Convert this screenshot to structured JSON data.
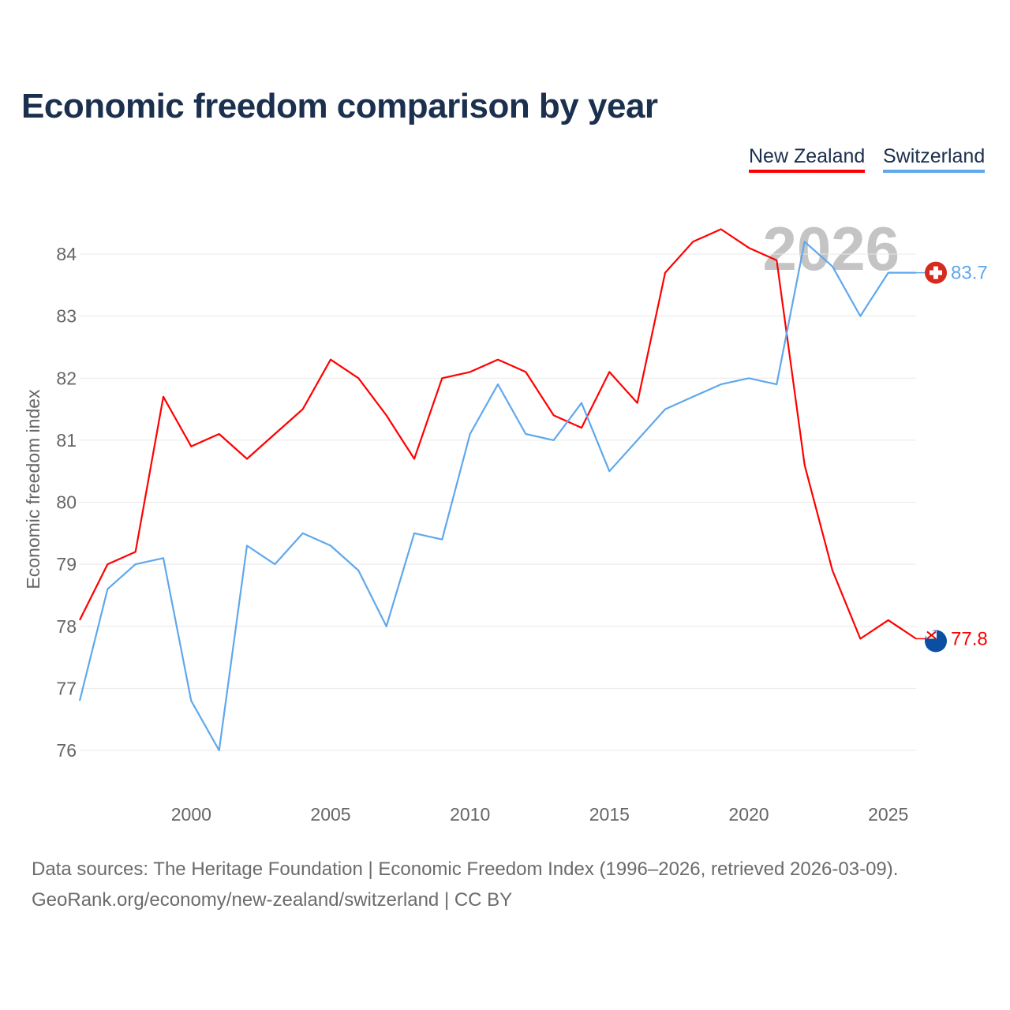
{
  "chart_data": {
    "type": "line",
    "title": "Economic freedom comparison by year",
    "xlabel": "",
    "ylabel": "Economic freedom index",
    "xlim": [
      1996,
      2026
    ],
    "ylim": [
      76,
      84
    ],
    "x_ticks": [
      2000,
      2005,
      2010,
      2015,
      2020,
      2025
    ],
    "y_ticks": [
      76,
      77,
      78,
      79,
      80,
      81,
      82,
      83,
      84
    ],
    "grid": true,
    "legend_position": "top-right",
    "watermark_year": "2026",
    "x": [
      1996,
      1997,
      1998,
      1999,
      2000,
      2001,
      2002,
      2003,
      2004,
      2005,
      2006,
      2007,
      2008,
      2009,
      2010,
      2011,
      2012,
      2013,
      2014,
      2015,
      2016,
      2017,
      2018,
      2019,
      2020,
      2021,
      2022,
      2023,
      2024,
      2025,
      2026
    ],
    "series": [
      {
        "name": "New Zealand",
        "color": "#ff0000",
        "end_label": "77.8",
        "flag": "new-zealand-flag",
        "values": [
          78.1,
          79.0,
          79.2,
          81.7,
          80.9,
          81.1,
          80.7,
          81.1,
          81.5,
          82.3,
          82.0,
          81.4,
          80.7,
          82.0,
          82.1,
          82.3,
          82.1,
          81.4,
          81.2,
          82.1,
          81.6,
          83.7,
          84.2,
          84.4,
          84.1,
          83.9,
          80.6,
          78.9,
          77.8,
          78.1,
          77.8
        ]
      },
      {
        "name": "Switzerland",
        "color": "#5fa8ec",
        "end_label": "83.7",
        "flag": "switzerland-flag",
        "values": [
          76.8,
          78.6,
          79.0,
          79.1,
          76.8,
          76.0,
          79.3,
          79.0,
          79.5,
          79.3,
          78.9,
          78.0,
          79.5,
          79.4,
          81.1,
          81.9,
          81.1,
          81.0,
          81.6,
          80.5,
          81.0,
          81.5,
          81.7,
          81.9,
          82.0,
          81.9,
          84.2,
          83.8,
          83.0,
          83.7,
          83.7
        ]
      }
    ]
  },
  "footer": {
    "line1": "Data sources: The Heritage Foundation | Economic Freedom Index (1996–2026, retrieved 2026-03-09).",
    "line2": "GeoRank.org/economy/new-zealand/switzerland | CC BY"
  }
}
